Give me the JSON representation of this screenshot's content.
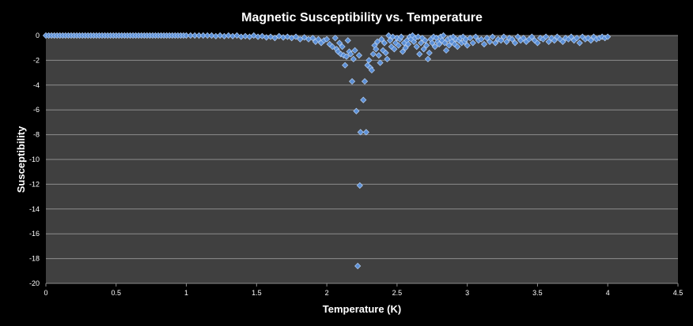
{
  "chart_data": {
    "type": "scatter",
    "title": "Magnetic Susceptibility vs. Temperature",
    "xlabel": "Temperature (K)",
    "ylabel": "Susceptibility",
    "xlim": [
      0,
      4.5
    ],
    "ylim": [
      -20,
      0
    ],
    "x_ticks": [
      "0",
      "0.5",
      "1",
      "1.5",
      "2",
      "2.5",
      "3",
      "3.5",
      "4",
      "4.5"
    ],
    "y_ticks": [
      "0",
      "-2",
      "-4",
      "-6",
      "-8",
      "-10",
      "-12",
      "-14",
      "-16",
      "-18",
      "-20"
    ],
    "grid": true,
    "legend": "none",
    "colors": {
      "background": "#000000",
      "plot_area": "#404040",
      "grid": "#8c8c8c",
      "marker": "#5b8fd6",
      "marker_edge": "#b7d0f2"
    },
    "series": [
      {
        "points": [
          [
            0.0,
            0
          ],
          [
            0.02,
            0
          ],
          [
            0.04,
            0
          ],
          [
            0.06,
            0
          ],
          [
            0.08,
            0
          ],
          [
            0.1,
            0
          ],
          [
            0.12,
            0
          ],
          [
            0.14,
            0
          ],
          [
            0.16,
            0
          ],
          [
            0.18,
            0
          ],
          [
            0.2,
            0
          ],
          [
            0.22,
            0
          ],
          [
            0.24,
            0
          ],
          [
            0.26,
            0
          ],
          [
            0.28,
            0
          ],
          [
            0.3,
            0
          ],
          [
            0.32,
            0
          ],
          [
            0.34,
            0
          ],
          [
            0.36,
            0
          ],
          [
            0.38,
            0
          ],
          [
            0.4,
            0
          ],
          [
            0.42,
            0
          ],
          [
            0.44,
            0
          ],
          [
            0.46,
            0
          ],
          [
            0.48,
            0
          ],
          [
            0.5,
            0
          ],
          [
            0.52,
            0
          ],
          [
            0.54,
            0
          ],
          [
            0.56,
            0
          ],
          [
            0.58,
            0
          ],
          [
            0.6,
            0
          ],
          [
            0.62,
            0
          ],
          [
            0.64,
            0
          ],
          [
            0.66,
            0
          ],
          [
            0.68,
            0
          ],
          [
            0.7,
            0
          ],
          [
            0.72,
            0
          ],
          [
            0.74,
            0
          ],
          [
            0.76,
            0
          ],
          [
            0.78,
            0
          ],
          [
            0.8,
            0
          ],
          [
            0.82,
            0
          ],
          [
            0.84,
            0
          ],
          [
            0.86,
            0
          ],
          [
            0.88,
            0
          ],
          [
            0.9,
            0
          ],
          [
            0.92,
            0
          ],
          [
            0.94,
            0
          ],
          [
            0.96,
            0
          ],
          [
            0.98,
            0
          ],
          [
            1.0,
            0
          ],
          [
            1.03,
            0
          ],
          [
            1.06,
            0
          ],
          [
            1.09,
            0
          ],
          [
            1.12,
            0
          ],
          [
            1.15,
            0
          ],
          [
            1.18,
            0
          ],
          [
            1.21,
            -0.05
          ],
          [
            1.24,
            0
          ],
          [
            1.27,
            -0.05
          ],
          [
            1.3,
            0
          ],
          [
            1.33,
            -0.05
          ],
          [
            1.36,
            0
          ],
          [
            1.39,
            -0.1
          ],
          [
            1.42,
            -0.05
          ],
          [
            1.45,
            -0.1
          ],
          [
            1.48,
            0
          ],
          [
            1.51,
            -0.1
          ],
          [
            1.54,
            -0.05
          ],
          [
            1.57,
            -0.15
          ],
          [
            1.6,
            -0.1
          ],
          [
            1.63,
            -0.2
          ],
          [
            1.66,
            -0.05
          ],
          [
            1.69,
            -0.15
          ],
          [
            1.72,
            -0.1
          ],
          [
            1.75,
            -0.2
          ],
          [
            1.78,
            -0.1
          ],
          [
            1.81,
            -0.3
          ],
          [
            1.84,
            -0.15
          ],
          [
            1.87,
            -0.3
          ],
          [
            1.9,
            -0.2
          ],
          [
            1.92,
            -0.5
          ],
          [
            1.94,
            -0.3
          ],
          [
            1.96,
            -0.6
          ],
          [
            1.98,
            -0.4
          ],
          [
            2.0,
            -0.3
          ],
          [
            2.02,
            -0.7
          ],
          [
            2.04,
            -0.9
          ],
          [
            2.06,
            -0.2
          ],
          [
            2.07,
            -1.1
          ],
          [
            2.08,
            -1.3
          ],
          [
            2.09,
            -0.6
          ],
          [
            2.1,
            -1.5
          ],
          [
            2.11,
            -0.9
          ],
          [
            2.12,
            -1.6
          ],
          [
            2.13,
            -2.4
          ],
          [
            2.14,
            -1.7
          ],
          [
            2.15,
            -0.4
          ],
          [
            2.16,
            -1.3
          ],
          [
            2.17,
            -1.5
          ],
          [
            2.18,
            -3.7
          ],
          [
            2.19,
            -1.9
          ],
          [
            2.2,
            -1.2
          ],
          [
            2.21,
            -6.1
          ],
          [
            2.22,
            -18.6
          ],
          [
            2.23,
            -1.6
          ],
          [
            2.235,
            -12.1
          ],
          [
            2.24,
            -7.8
          ],
          [
            2.26,
            -5.2
          ],
          [
            2.27,
            -3.7
          ],
          [
            2.28,
            -7.8
          ],
          [
            2.29,
            -2.4
          ],
          [
            2.3,
            -2.0
          ],
          [
            2.31,
            -2.6
          ],
          [
            2.32,
            -2.8
          ],
          [
            2.33,
            -1.5
          ],
          [
            2.34,
            -0.8
          ],
          [
            2.35,
            -1.1
          ],
          [
            2.36,
            -0.5
          ],
          [
            2.37,
            -1.6
          ],
          [
            2.38,
            -2.2
          ],
          [
            2.39,
            -0.3
          ],
          [
            2.4,
            -1.2
          ],
          [
            2.41,
            -0.6
          ],
          [
            2.42,
            -1.4
          ],
          [
            2.43,
            -1.9
          ],
          [
            2.44,
            0
          ],
          [
            2.45,
            -0.4
          ],
          [
            2.46,
            -0.9
          ],
          [
            2.47,
            -0.1
          ],
          [
            2.48,
            -1.1
          ],
          [
            2.49,
            -0.6
          ],
          [
            2.5,
            -0.2
          ],
          [
            2.51,
            -0.8
          ],
          [
            2.52,
            -0.3
          ],
          [
            2.53,
            -0.1
          ],
          [
            2.54,
            -1.3
          ],
          [
            2.55,
            -0.6
          ],
          [
            2.56,
            -1.0
          ],
          [
            2.57,
            -0.4
          ],
          [
            2.58,
            -0.7
          ],
          [
            2.59,
            -0.1
          ],
          [
            2.6,
            -0.3
          ],
          [
            2.61,
            0
          ],
          [
            2.62,
            -0.5
          ],
          [
            2.63,
            -0.2
          ],
          [
            2.64,
            -0.9
          ],
          [
            2.65,
            -0.1
          ],
          [
            2.66,
            -1.5
          ],
          [
            2.67,
            -0.6
          ],
          [
            2.68,
            -0.2
          ],
          [
            2.69,
            -1.1
          ],
          [
            2.7,
            -0.4
          ],
          [
            2.71,
            -0.8
          ],
          [
            2.72,
            -1.9
          ],
          [
            2.73,
            -1.4
          ],
          [
            2.74,
            -0.3
          ],
          [
            2.75,
            -0.6
          ],
          [
            2.76,
            -0.1
          ],
          [
            2.77,
            -0.9
          ],
          [
            2.78,
            -0.2
          ],
          [
            2.79,
            -0.5
          ],
          [
            2.8,
            -0.7
          ],
          [
            2.81,
            -0.1
          ],
          [
            2.82,
            -0.4
          ],
          [
            2.83,
            0
          ],
          [
            2.84,
            -0.6
          ],
          [
            2.85,
            -1.2
          ],
          [
            2.86,
            -0.3
          ],
          [
            2.87,
            -0.8
          ],
          [
            2.88,
            -0.2
          ],
          [
            2.89,
            -0.5
          ],
          [
            2.9,
            -0.1
          ],
          [
            2.91,
            -0.7
          ],
          [
            2.92,
            -0.3
          ],
          [
            2.93,
            -0.9
          ],
          [
            2.94,
            -0.4
          ],
          [
            2.95,
            -0.2
          ],
          [
            2.96,
            -0.6
          ],
          [
            2.97,
            -0.1
          ],
          [
            2.98,
            -0.5
          ],
          [
            2.99,
            -0.3
          ],
          [
            3.0,
            -0.8
          ],
          [
            3.02,
            -0.2
          ],
          [
            3.04,
            -0.6
          ],
          [
            3.06,
            -0.1
          ],
          [
            3.08,
            -0.4
          ],
          [
            3.1,
            -0.3
          ],
          [
            3.12,
            -0.7
          ],
          [
            3.14,
            -0.2
          ],
          [
            3.16,
            -0.5
          ],
          [
            3.18,
            -0.1
          ],
          [
            3.2,
            -0.6
          ],
          [
            3.22,
            -0.3
          ],
          [
            3.24,
            -0.4
          ],
          [
            3.26,
            -0.1
          ],
          [
            3.28,
            -0.5
          ],
          [
            3.3,
            -0.2
          ],
          [
            3.32,
            -0.3
          ],
          [
            3.34,
            -0.6
          ],
          [
            3.36,
            -0.1
          ],
          [
            3.38,
            -0.4
          ],
          [
            3.4,
            -0.2
          ],
          [
            3.42,
            -0.5
          ],
          [
            3.44,
            -0.3
          ],
          [
            3.46,
            -0.1
          ],
          [
            3.48,
            -0.4
          ],
          [
            3.5,
            -0.6
          ],
          [
            3.52,
            -0.2
          ],
          [
            3.54,
            -0.3
          ],
          [
            3.56,
            -0.1
          ],
          [
            3.58,
            -0.5
          ],
          [
            3.6,
            -0.2
          ],
          [
            3.62,
            -0.4
          ],
          [
            3.64,
            -0.1
          ],
          [
            3.66,
            -0.3
          ],
          [
            3.68,
            -0.5
          ],
          [
            3.7,
            -0.2
          ],
          [
            3.72,
            -0.3
          ],
          [
            3.74,
            -0.1
          ],
          [
            3.76,
            -0.4
          ],
          [
            3.78,
            -0.2
          ],
          [
            3.8,
            -0.6
          ],
          [
            3.82,
            -0.1
          ],
          [
            3.84,
            -0.3
          ],
          [
            3.86,
            -0.2
          ],
          [
            3.88,
            -0.4
          ],
          [
            3.9,
            -0.1
          ],
          [
            3.92,
            -0.3
          ],
          [
            3.94,
            -0.2
          ],
          [
            3.96,
            -0.1
          ],
          [
            3.98,
            -0.2
          ],
          [
            4.0,
            -0.1
          ]
        ]
      }
    ]
  }
}
